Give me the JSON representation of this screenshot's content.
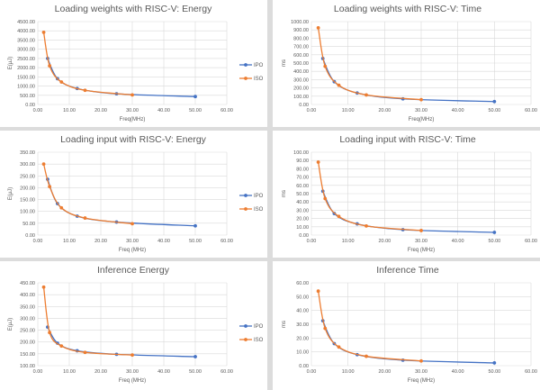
{
  "chart_data": [
    {
      "type": "line",
      "title": "Loading weights with RISC-V: Energy",
      "xlabel": "Freq(MHz)",
      "ylabel": "E(µJ)",
      "xlim": [
        0,
        60
      ],
      "ylim": [
        0,
        4500
      ],
      "xticks": [
        "0.00",
        "10.00",
        "20.00",
        "30.00",
        "40.00",
        "50.00",
        "60.00"
      ],
      "yticks": [
        "0.00",
        "500.00",
        "1000.00",
        "1500.00",
        "2000.00",
        "2500.00",
        "3000.00",
        "3500.00",
        "4000.00",
        "4500.00"
      ],
      "legend": "right",
      "series": [
        {
          "name": "IPO",
          "color": "#4472C4",
          "x": [
            3.125,
            6.25,
            12.5,
            25,
            50
          ],
          "y": [
            2500,
            1400,
            870,
            580,
            430
          ]
        },
        {
          "name": "ISO",
          "color": "#ED7D31",
          "x": [
            1.875,
            3.75,
            7.5,
            15,
            30
          ],
          "y": [
            3920,
            2100,
            1220,
            770,
            520
          ]
        }
      ]
    },
    {
      "type": "line",
      "title": "Loading weights with RISC-V: Time",
      "xlabel": "Freq(MHz)",
      "ylabel": "ms",
      "xlim": [
        0,
        60
      ],
      "ylim": [
        0,
        1000
      ],
      "xticks": [
        "0.00",
        "10.00",
        "20.00",
        "30.00",
        "40.00",
        "50.00",
        "60.00"
      ],
      "yticks": [
        "0.00",
        "100.00",
        "200.00",
        "300.00",
        "400.00",
        "500.00",
        "600.00",
        "700.00",
        "800.00",
        "900.00",
        "1000.00"
      ],
      "legend": "none",
      "series": [
        {
          "name": "IPO",
          "color": "#4472C4",
          "x": [
            3.125,
            6.25,
            12.5,
            25,
            50
          ],
          "y": [
            555,
            275,
            138,
            68,
            35
          ]
        },
        {
          "name": "ISO",
          "color": "#ED7D31",
          "x": [
            1.875,
            3.75,
            7.5,
            15,
            30
          ],
          "y": [
            925,
            460,
            232,
            115,
            58
          ]
        }
      ]
    },
    {
      "type": "line",
      "title": "Loading input with RISC-V: Energy",
      "xlabel": "Freq (MHz)",
      "ylabel": "E(µJ)",
      "xlim": [
        0,
        60
      ],
      "ylim": [
        0,
        350
      ],
      "xticks": [
        "0.00",
        "10.00",
        "20.00",
        "30.00",
        "40.00",
        "50.00",
        "60.00"
      ],
      "yticks": [
        "0.00",
        "50.00",
        "100.00",
        "150.00",
        "200.00",
        "250.00",
        "300.00",
        "350.00"
      ],
      "legend": "right",
      "series": [
        {
          "name": "IPO",
          "color": "#4472C4",
          "x": [
            3.125,
            6.25,
            12.5,
            25,
            50
          ],
          "y": [
            236,
            133,
            80,
            55,
            39
          ]
        },
        {
          "name": "ISO",
          "color": "#ED7D31",
          "x": [
            1.875,
            3.75,
            7.5,
            15,
            30
          ],
          "y": [
            300,
            205,
            115,
            72,
            48
          ]
        }
      ]
    },
    {
      "type": "line",
      "title": "Loading input with RISC-V: Time",
      "xlabel": "Freq (MHz)",
      "ylabel": "ms",
      "xlim": [
        0,
        60
      ],
      "ylim": [
        0,
        100
      ],
      "xticks": [
        "0.00",
        "10.00",
        "20.00",
        "30.00",
        "40.00",
        "50.00",
        "60.00"
      ],
      "yticks": [
        "0.00",
        "10.00",
        "20.00",
        "30.00",
        "40.00",
        "50.00",
        "60.00",
        "70.00",
        "80.00",
        "90.00",
        "100.00"
      ],
      "legend": "none",
      "series": [
        {
          "name": "IPO",
          "color": "#4472C4",
          "x": [
            3.125,
            6.25,
            12.5,
            25,
            50
          ],
          "y": [
            53,
            26,
            13.5,
            6.5,
            3.3
          ]
        },
        {
          "name": "ISO",
          "color": "#ED7D31",
          "x": [
            1.875,
            3.75,
            7.5,
            15,
            30
          ],
          "y": [
            88,
            44,
            22.5,
            11,
            5.5
          ]
        }
      ]
    },
    {
      "type": "line",
      "title": "Inference Energy",
      "xlabel": "Freq (MHz)",
      "ylabel": "E(µJ)",
      "xlim": [
        0,
        60
      ],
      "ylim": [
        100,
        450
      ],
      "xticks": [
        "0.00",
        "10.00",
        "20.00",
        "30.00",
        "40.00",
        "50.00",
        "60.00"
      ],
      "yticks": [
        "100.00",
        "150.00",
        "200.00",
        "250.00",
        "300.00",
        "350.00",
        "400.00",
        "450.00"
      ],
      "legend": "right",
      "series": [
        {
          "name": "IPO",
          "color": "#4472C4",
          "x": [
            3.125,
            6.25,
            12.5,
            25,
            50
          ],
          "y": [
            263,
            195,
            163,
            148,
            138
          ]
        },
        {
          "name": "ISO",
          "color": "#ED7D31",
          "x": [
            1.875,
            3.75,
            7.5,
            15,
            30
          ],
          "y": [
            432,
            240,
            183,
            156,
            145
          ]
        }
      ]
    },
    {
      "type": "line",
      "title": "Inference Time",
      "xlabel": "Freq (MHz)",
      "ylabel": "ms",
      "xlim": [
        0,
        60
      ],
      "ylim": [
        0,
        60
      ],
      "xticks": [
        "0.00",
        "10.00",
        "20.00",
        "30.00",
        "40.00",
        "50.00",
        "60.00"
      ],
      "yticks": [
        "0.00",
        "10.00",
        "20.00",
        "30.00",
        "40.00",
        "50.00",
        "60.00"
      ],
      "legend": "none",
      "series": [
        {
          "name": "IPO",
          "color": "#4472C4",
          "x": [
            3.125,
            6.25,
            12.5,
            25,
            50
          ],
          "y": [
            32.5,
            16,
            8,
            4,
            2
          ]
        },
        {
          "name": "ISO",
          "color": "#ED7D31",
          "x": [
            1.875,
            3.75,
            7.5,
            15,
            30
          ],
          "y": [
            54,
            27,
            13.5,
            6.8,
            3.4
          ]
        }
      ]
    }
  ]
}
